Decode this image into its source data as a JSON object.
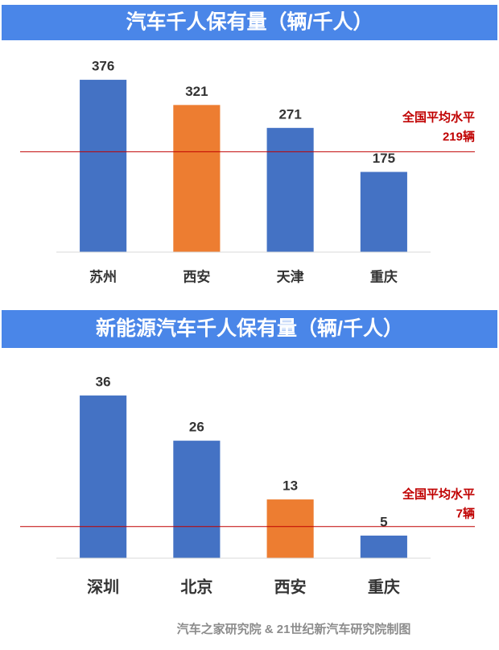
{
  "chart_data": [
    {
      "type": "bar",
      "title": "汽车千人保有量（辆/千人）",
      "categories": [
        "苏州",
        "西安",
        "天津",
        "重庆"
      ],
      "values": [
        376,
        321,
        271,
        175
      ],
      "colors": [
        "#4472c4",
        "#ed7d31",
        "#4472c4",
        "#4472c4"
      ],
      "ylim": [
        0,
        400
      ],
      "reference_line": {
        "name": "全国平均水平",
        "value": 219,
        "value_label": "219辆",
        "color": "#c00000"
      }
    },
    {
      "type": "bar",
      "title": "新能源汽车千人保有量（辆/千人）",
      "categories": [
        "深圳",
        "北京",
        "西安",
        "重庆"
      ],
      "values": [
        36,
        26,
        13,
        5
      ],
      "colors": [
        "#4472c4",
        "#4472c4",
        "#ed7d31",
        "#4472c4"
      ],
      "ylim": [
        0,
        40
      ],
      "reference_line": {
        "name": "全国平均水平",
        "value": 7,
        "value_label": "7辆",
        "color": "#c00000"
      }
    }
  ],
  "footer": "汽车之家研究院 & 21世纪新汽车研究院制图"
}
